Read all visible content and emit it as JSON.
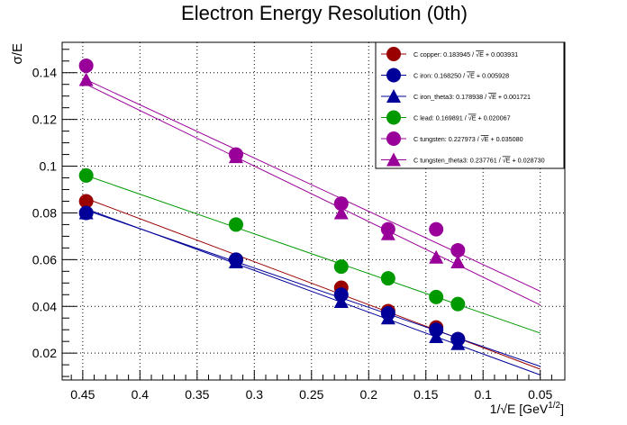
{
  "chart_data": {
    "type": "scatter",
    "title": "Electron Energy Resolution (0th)",
    "xlabel_prefix": "1/",
    "xlabel_sqrt": "√E",
    "xlabel_unit": " [GeV",
    "xlabel_exp": "1/2",
    "xlabel_close": "]",
    "ylabel": "σ/E",
    "xlim": [
      0.468,
      0.0285
    ],
    "ylim": [
      0.0085,
      0.153
    ],
    "x_reversed": true,
    "grid": true,
    "legend_position": "top-right",
    "x_ticks": [
      {
        "value": 0.45,
        "label": "0.45"
      },
      {
        "value": 0.4,
        "label": "0.4"
      },
      {
        "value": 0.35,
        "label": "0.35"
      },
      {
        "value": 0.3,
        "label": "0.3"
      },
      {
        "value": 0.25,
        "label": "0.25"
      },
      {
        "value": 0.2,
        "label": "0.2"
      },
      {
        "value": 0.15,
        "label": "0.15"
      },
      {
        "value": 0.1,
        "label": "0.1"
      },
      {
        "value": 0.05,
        "label": "0.05"
      }
    ],
    "y_ticks": [
      {
        "value": 0.02,
        "label": "0.02"
      },
      {
        "value": 0.04,
        "label": "0.04"
      },
      {
        "value": 0.06,
        "label": "0.06"
      },
      {
        "value": 0.08,
        "label": "0.08"
      },
      {
        "value": 0.1,
        "label": "0.1"
      },
      {
        "value": 0.12,
        "label": "0.12"
      },
      {
        "value": 0.14,
        "label": "0.14"
      }
    ],
    "series": [
      {
        "id": "copper",
        "color": "#990000",
        "marker": "circle",
        "legend_prefix": "C copper: 0.183945 / ",
        "legend_suffix": " + 0.003931",
        "fit": {
          "a": 0.183945,
          "b": 0.003931
        },
        "points": [
          [
            0.447,
            0.085
          ],
          [
            0.316,
            0.06
          ],
          [
            0.224,
            0.048
          ],
          [
            0.183,
            0.038
          ],
          [
            0.141,
            0.031
          ],
          [
            0.122,
            0.026
          ]
        ]
      },
      {
        "id": "iron",
        "color": "#000099",
        "marker": "circle",
        "legend_prefix": "C iron: 0.168250 / ",
        "legend_suffix": " + 0.005928",
        "fit": {
          "a": 0.16825,
          "b": 0.005928
        },
        "points": [
          [
            0.447,
            0.08
          ],
          [
            0.316,
            0.06
          ],
          [
            0.224,
            0.045
          ],
          [
            0.183,
            0.037
          ],
          [
            0.141,
            0.03
          ],
          [
            0.122,
            0.026
          ]
        ]
      },
      {
        "id": "iron_theta3",
        "color": "#000099",
        "marker": "triangle",
        "legend_prefix": "C iron_theta3: 0.178938 / ",
        "legend_suffix": " + 0.001721",
        "fit": {
          "a": 0.178938,
          "b": 0.001721
        },
        "points": [
          [
            0.447,
            0.08
          ],
          [
            0.316,
            0.059
          ],
          [
            0.224,
            0.042
          ],
          [
            0.183,
            0.035
          ],
          [
            0.141,
            0.027
          ],
          [
            0.122,
            0.024
          ]
        ]
      },
      {
        "id": "lead",
        "color": "#009900",
        "marker": "circle",
        "legend_prefix": "C lead: 0.169891 / ",
        "legend_suffix": " + 0.020067",
        "fit": {
          "a": 0.169891,
          "b": 0.020067
        },
        "points": [
          [
            0.447,
            0.096
          ],
          [
            0.316,
            0.075
          ],
          [
            0.224,
            0.057
          ],
          [
            0.183,
            0.052
          ],
          [
            0.141,
            0.044
          ],
          [
            0.122,
            0.041
          ]
        ]
      },
      {
        "id": "tungsten",
        "color": "#990099",
        "marker": "circle",
        "legend_prefix": "C tungsten: 0.227973 / ",
        "legend_suffix": " + 0.035080",
        "fit": {
          "a": 0.227973,
          "b": 0.03508
        },
        "points": [
          [
            0.447,
            0.143
          ],
          [
            0.316,
            0.105
          ],
          [
            0.224,
            0.084
          ],
          [
            0.183,
            0.073
          ],
          [
            0.141,
            0.073
          ],
          [
            0.122,
            0.064
          ]
        ]
      },
      {
        "id": "tungsten_theta3",
        "color": "#990099",
        "marker": "triangle",
        "legend_prefix": "C tungsten_theta3: 0.237761 / ",
        "legend_suffix": " + 0.028730",
        "fit": {
          "a": 0.237761,
          "b": 0.02873
        },
        "points": [
          [
            0.447,
            0.137
          ],
          [
            0.316,
            0.104
          ],
          [
            0.224,
            0.08
          ],
          [
            0.183,
            0.071
          ],
          [
            0.141,
            0.061
          ],
          [
            0.122,
            0.059
          ]
        ]
      }
    ]
  }
}
